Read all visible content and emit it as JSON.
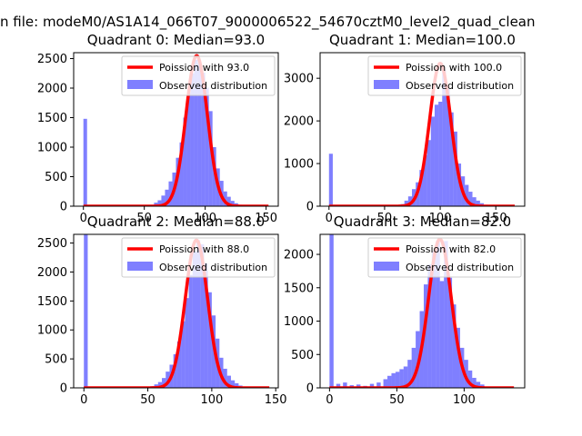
{
  "figure": {
    "suptitle": "n file: modeM0/AS1A14_066T07_9000006522_54670cztM0_level2_quad_clean"
  },
  "colors": {
    "hist": "#0000ff",
    "curve": "#ff0000",
    "axes": "#000000",
    "background": "#ffffff"
  },
  "chart_data": [
    {
      "type": "bar",
      "title": "Quadrant 0: Median=93.0",
      "median": 93,
      "xlim": [
        -8,
        160
      ],
      "ylim": [
        0,
        2600
      ],
      "xticks": [
        0,
        50,
        100,
        150
      ],
      "yticks": [
        0,
        500,
        1000,
        1500,
        2000,
        2500
      ],
      "legend": {
        "placement": "top-right",
        "curve_label": "Poission with 93.0",
        "hist_label": "Observed distribution"
      },
      "bin_width": 3,
      "bins_x": [
        0,
        52,
        55,
        58,
        61,
        64,
        67,
        70,
        73,
        76,
        79,
        82,
        85,
        88,
        91,
        94,
        97,
        100,
        103,
        106,
        109,
        112,
        115,
        118,
        121,
        124,
        127,
        130,
        133
      ],
      "bins_y": [
        1480,
        10,
        25,
        60,
        100,
        180,
        280,
        420,
        570,
        820,
        1080,
        1500,
        1920,
        2250,
        2480,
        2420,
        2260,
        2010,
        1610,
        1000,
        640,
        430,
        250,
        160,
        90,
        50,
        25,
        12,
        5
      ],
      "curve_x": [
        0,
        152
      ],
      "curve_peak": 2550,
      "curve_sigma": 8.8
    },
    {
      "type": "bar",
      "title": "Quadrant 1: Median=100.0",
      "median": 100,
      "xlim": [
        -8,
        176
      ],
      "ylim": [
        0,
        3600
      ],
      "xticks": [
        0,
        50,
        100,
        150
      ],
      "yticks": [
        0,
        1000,
        2000,
        3000
      ],
      "legend": {
        "placement": "top-right",
        "curve_label": "Poission with 100.0",
        "hist_label": "Observed distribution"
      },
      "bin_width": 3.4,
      "bins_x": [
        0,
        61,
        64.4,
        67.8,
        71.2,
        74.6,
        78,
        81.4,
        84.8,
        88.2,
        91.6,
        95,
        98.4,
        101.8,
        105.2,
        108.6,
        112,
        115.4,
        118.8,
        122.2,
        125.6,
        129,
        132.4,
        135.8,
        139.2,
        142.6
      ],
      "bins_y": [
        1230,
        20,
        50,
        130,
        230,
        400,
        560,
        850,
        1200,
        1550,
        2100,
        2380,
        2450,
        3200,
        2750,
        2200,
        1750,
        1000,
        700,
        500,
        340,
        210,
        130,
        70,
        35,
        15
      ],
      "curve_x": [
        0,
        167
      ],
      "curve_peak": 3350,
      "curve_sigma": 9.5
    },
    {
      "type": "bar",
      "title": "Quadrant 2: Median=88.0",
      "median": 88,
      "xlim": [
        -8,
        152
      ],
      "ylim": [
        0,
        2650
      ],
      "xticks": [
        0,
        50,
        100,
        150
      ],
      "yticks": [
        0,
        500,
        1000,
        1500,
        2000,
        2500
      ],
      "legend": {
        "placement": "top-right",
        "curve_label": "Poission with 88.0",
        "hist_label": "Observed distribution"
      },
      "bin_width": 3,
      "bins_x": [
        0,
        49,
        52,
        55,
        58,
        61,
        64,
        67,
        70,
        73,
        76,
        79,
        82,
        85,
        88,
        91,
        94,
        97,
        100,
        103,
        106,
        109,
        112,
        115,
        118,
        121,
        124,
        127
      ],
      "bins_y": [
        2650,
        15,
        30,
        60,
        100,
        170,
        280,
        400,
        580,
        800,
        1150,
        1550,
        1950,
        2350,
        2550,
        2480,
        2150,
        1650,
        1250,
        850,
        520,
        330,
        210,
        130,
        80,
        40,
        20,
        8
      ],
      "curve_x": [
        0,
        145
      ],
      "curve_peak": 2550,
      "curve_sigma": 8.7
    },
    {
      "type": "bar",
      "title": "Quadrant 3: Median=82.0",
      "median": 82,
      "xlim": [
        -7,
        145
      ],
      "ylim": [
        0,
        2300
      ],
      "xticks": [
        0,
        50,
        100
      ],
      "yticks": [
        0,
        500,
        1000,
        1500,
        2000
      ],
      "legend": {
        "placement": "top-right",
        "curve_label": "Poission with 82.0",
        "hist_label": "Observed distribution"
      },
      "bin_width": 3,
      "bins_x": [
        0,
        5,
        10,
        15,
        20,
        25,
        30,
        35,
        40,
        43,
        46,
        49,
        52,
        55,
        58,
        61,
        64,
        67,
        70,
        73,
        76,
        79,
        82,
        85,
        88,
        91,
        94,
        97,
        100,
        103,
        106,
        109,
        112,
        115,
        118
      ],
      "bins_y": [
        2300,
        60,
        80,
        40,
        50,
        30,
        60,
        80,
        130,
        180,
        220,
        240,
        280,
        320,
        420,
        600,
        850,
        1150,
        1550,
        1850,
        2050,
        2200,
        1600,
        2200,
        1650,
        1250,
        900,
        600,
        420,
        260,
        150,
        90,
        50,
        20,
        8
      ],
      "curve_x": [
        0,
        137
      ],
      "curve_peak": 2230,
      "curve_sigma": 8.4
    }
  ]
}
